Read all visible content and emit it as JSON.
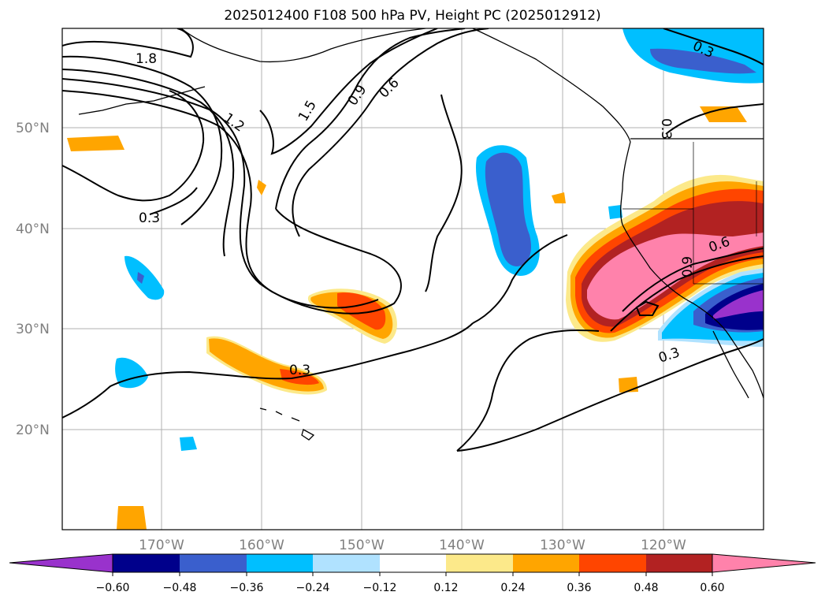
{
  "title": "2025012400 F108 500 hPa PV, Height PC (2025012912)",
  "lat_labels": [
    "50°N",
    "40°N",
    "30°N",
    "20°N"
  ],
  "lon_labels": [
    "170°W",
    "160°W",
    "150°W",
    "140°W",
    "130°W",
    "120°W"
  ],
  "colorbar": {
    "ticks": [
      "−0.60",
      "−0.48",
      "−0.36",
      "−0.24",
      "−0.12",
      "0.12",
      "0.24",
      "0.36",
      "0.48",
      "0.60"
    ],
    "colors": [
      "#9932cc",
      "#00008b",
      "#3a5fcd",
      "#00bfff",
      "#b0e2ff",
      "#ffffff",
      "#fce98a",
      "#ffa500",
      "#ff4500",
      "#b22222",
      "#ff82ab"
    ]
  },
  "contour_labels": [
    "1.8",
    "1.2",
    "1.5",
    "0.9",
    "0.6",
    "0.3",
    "0.3",
    "0.3",
    "0.3",
    "0.6",
    "0.3",
    "0.9"
  ]
}
